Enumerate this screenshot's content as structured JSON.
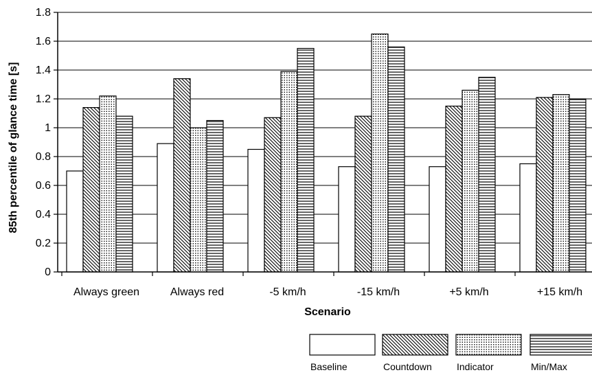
{
  "chart_data": {
    "type": "bar",
    "title": "",
    "xlabel": "Scenario",
    "ylabel": "85th percentile of glance time [s]",
    "ylim": [
      0,
      1.8
    ],
    "yticks": [
      0,
      0.2,
      0.4,
      0.6,
      0.8,
      1,
      1.2,
      1.4,
      1.6,
      1.8
    ],
    "ytick_labels": [
      "0",
      "0.2",
      "0.4",
      "0.6",
      "0.8",
      "1",
      "1.2",
      "1.4",
      "1.6",
      "1.8"
    ],
    "grid": "horizontal",
    "legend_position": "bottom-right",
    "categories": [
      "Always green",
      "Always red",
      "-5 km/h",
      "-15 km/h",
      "+5 km/h",
      "+15 km/h"
    ],
    "series": [
      {
        "name": "Baseline",
        "pattern": "none",
        "values": [
          0.7,
          0.89,
          0.85,
          0.73,
          0.73,
          0.75
        ]
      },
      {
        "name": "Countdown",
        "pattern": "diagonal",
        "values": [
          1.14,
          1.34,
          1.07,
          1.08,
          1.15,
          1.21
        ]
      },
      {
        "name": "Indicator",
        "pattern": "dots",
        "values": [
          1.22,
          1.0,
          1.39,
          1.65,
          1.26,
          1.23
        ]
      },
      {
        "name": "Min/Max",
        "pattern": "horizontal",
        "values": [
          1.08,
          1.05,
          1.55,
          1.56,
          1.35,
          1.2
        ]
      }
    ],
    "colors": {
      "bar_fill": "#ffffff",
      "stroke": "#000000",
      "grid": "#000000"
    }
  }
}
